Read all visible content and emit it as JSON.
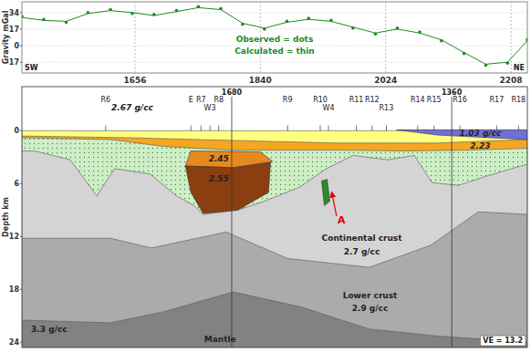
{
  "chart_data": [
    {
      "type": "line",
      "y_label": "Gravity mGal",
      "left_label": "SW",
      "right_label": "NE",
      "xlim": [
        1490,
        2232
      ],
      "xticks": [
        1656,
        1840,
        2024,
        2208
      ],
      "ylim": [
        -28,
        45
      ],
      "yticks": [
        -17,
        0,
        17,
        34
      ],
      "grid": true,
      "legend": "center",
      "x": [
        1490,
        1522,
        1555,
        1587,
        1620,
        1652,
        1684,
        1717,
        1749,
        1782,
        1814,
        1846,
        1879,
        1911,
        1944,
        1976,
        2009,
        2041,
        2074,
        2106,
        2139,
        2171,
        2203,
        2232
      ],
      "series": [
        {
          "name": "Observed = dots",
          "color": "#1e8c1e",
          "marker": "dot",
          "values": [
            30,
            27,
            24,
            34,
            37,
            33,
            32,
            36,
            40,
            38,
            22,
            17,
            25,
            28,
            26,
            18,
            12,
            18,
            14,
            5,
            -8,
            -20,
            -18,
            6
          ]
        },
        {
          "name": "Calculated = thin",
          "color": "#1e8c1e",
          "line_style": "solid",
          "values": [
            29,
            26,
            25,
            33,
            36,
            34,
            31,
            35,
            39,
            37,
            23,
            18,
            24,
            27,
            25,
            19,
            13,
            17,
            13,
            6,
            -7,
            -19,
            -17,
            5
          ]
        }
      ]
    },
    {
      "type": "cross_section",
      "y_label": "Depth km",
      "xlim": [
        1490,
        2232
      ],
      "ylim": [
        -5,
        24.6
      ],
      "yticks": [
        0,
        6,
        12,
        18,
        24
      ],
      "layers": [
        {
          "color": "#ffff80",
          "top": [
            [
              1490,
              0
            ],
            [
              2232,
              0
            ]
          ]
        },
        {
          "color": "#f5a623",
          "top": [
            [
              1490,
              0.6
            ],
            [
              1650,
              0.8
            ],
            [
              1750,
              1.0
            ],
            [
              1950,
              1.4
            ],
            [
              2100,
              1.4
            ],
            [
              2232,
              1.0
            ]
          ]
        },
        {
          "color": "#cfeec8",
          "marker": "dot",
          "top": [
            [
              1490,
              0.8
            ],
            [
              1620,
              1.0
            ],
            [
              1700,
              1.8
            ],
            [
              1800,
              2.2
            ],
            [
              1950,
              2.2
            ],
            [
              2050,
              2.3
            ],
            [
              2150,
              2.2
            ],
            [
              2232,
              2.0
            ]
          ]
        },
        {
          "color": "#d4d4d4",
          "top": [
            [
              1490,
              2.3
            ],
            [
              1509,
              2.3
            ],
            [
              1561,
              3.3
            ],
            [
              1600,
              7.4
            ],
            [
              1626,
              4.3
            ],
            [
              1678,
              4.9
            ],
            [
              1717,
              7.4
            ],
            [
              1743,
              8.5
            ],
            [
              1756,
              9.5
            ],
            [
              1807,
              9.0
            ],
            [
              1846,
              8.0
            ],
            [
              1898,
              6.4
            ],
            [
              1937,
              4.3
            ],
            [
              1976,
              2.8
            ],
            [
              2027,
              3.3
            ],
            [
              2066,
              2.8
            ],
            [
              2092,
              5.9
            ],
            [
              2131,
              6.2
            ],
            [
              2170,
              5.2
            ],
            [
              2209,
              4.3
            ],
            [
              2232,
              3.8
            ]
          ]
        },
        {
          "color": "#ababab",
          "top": [
            [
              1490,
              12.2
            ],
            [
              1620,
              12.2
            ],
            [
              1680,
              13.3
            ],
            [
              1790,
              11.5
            ],
            [
              1880,
              14.5
            ],
            [
              2000,
              15.5
            ],
            [
              2090,
              13.0
            ],
            [
              2160,
              9.2
            ],
            [
              2232,
              9.5
            ]
          ]
        },
        {
          "color": "#828282",
          "top": [
            [
              1490,
              21.5
            ],
            [
              1620,
              21.8
            ],
            [
              1700,
              20.5
            ],
            [
              1800,
              18.3
            ],
            [
              1900,
              20.0
            ],
            [
              2000,
              22.5
            ],
            [
              2100,
              23.3
            ],
            [
              2232,
              24.0
            ]
          ]
        }
      ],
      "bodies": [
        {
          "color": "#6f6fd8",
          "outline": [
            [
              2040,
              -0.1
            ],
            [
              2232,
              -0.1
            ],
            [
              2232,
              1.0
            ],
            [
              2100,
              0.5
            ]
          ]
        },
        {
          "color": "#e8891e",
          "outline": [
            [
              1738,
              2.3
            ],
            [
              1840,
              2.4
            ],
            [
              1858,
              3.5
            ],
            [
              1800,
              4.2
            ],
            [
              1730,
              4.0
            ]
          ]
        },
        {
          "color": "#8b3f10",
          "outline": [
            [
              1730,
              4.0
            ],
            [
              1800,
              4.2
            ],
            [
              1855,
              3.6
            ],
            [
              1852,
              7.0
            ],
            [
              1807,
              9.0
            ],
            [
              1756,
              9.4
            ],
            [
              1738,
              7.0
            ]
          ]
        },
        {
          "color": "#2d8a2d",
          "outline": [
            [
              1930,
              5.7
            ],
            [
              1938,
              5.5
            ],
            [
              1942,
              8.0
            ],
            [
              1934,
              8.5
            ]
          ]
        }
      ],
      "wells": [
        {
          "label": "1680",
          "x": 1798
        },
        {
          "label": "1360",
          "x": 2121
        }
      ],
      "markers": [
        {
          "label": "R6",
          "x": 1613
        },
        {
          "label": "E",
          "x": 1738
        },
        {
          "label": "R7",
          "x": 1753
        },
        {
          "label": "W3",
          "x": 1766
        },
        {
          "label": "R8",
          "x": 1779
        },
        {
          "label": "R9",
          "x": 1880
        },
        {
          "label": "R10",
          "x": 1928
        },
        {
          "label": "W4",
          "x": 1940
        },
        {
          "label": "R11",
          "x": 1981
        },
        {
          "label": "R12",
          "x": 2004
        },
        {
          "label": "R13",
          "x": 2025
        },
        {
          "label": "R14",
          "x": 2071
        },
        {
          "label": "R15",
          "x": 2095
        },
        {
          "label": "R16",
          "x": 2133
        },
        {
          "label": "R17",
          "x": 2187
        },
        {
          "label": "R18",
          "x": 2219
        }
      ],
      "labels": [
        {
          "text": "2.67 g/cc",
          "x": 1652,
          "depth": -2.3
        },
        {
          "text": "1.03 g/cc",
          "x": 2163,
          "depth": 0.6
        },
        {
          "text": "2.23",
          "x": 2163,
          "depth": 2.0
        },
        {
          "text": "2.45",
          "x": 1779,
          "depth": 3.5
        },
        {
          "text": "2.55",
          "x": 1779,
          "depth": 5.8
        },
        {
          "text": "Continental crust",
          "x": 1989,
          "depth": 12.5
        },
        {
          "text": "2.7 g/cc",
          "x": 1989,
          "depth": 14.0
        },
        {
          "text": "Lower crust",
          "x": 2001,
          "depth": 19.0
        },
        {
          "text": "2.9 g/cc",
          "x": 2001,
          "depth": 20.5
        },
        {
          "text": "3.3 g/cc",
          "x": 1530,
          "depth": 22.8
        },
        {
          "text": "Mantle",
          "x": 1781,
          "depth": 24.0
        }
      ],
      "annotation": {
        "text": "A",
        "x": 1959,
        "depth": 10.5,
        "color": "#e00000"
      },
      "note": "VE = 13.2"
    }
  ]
}
